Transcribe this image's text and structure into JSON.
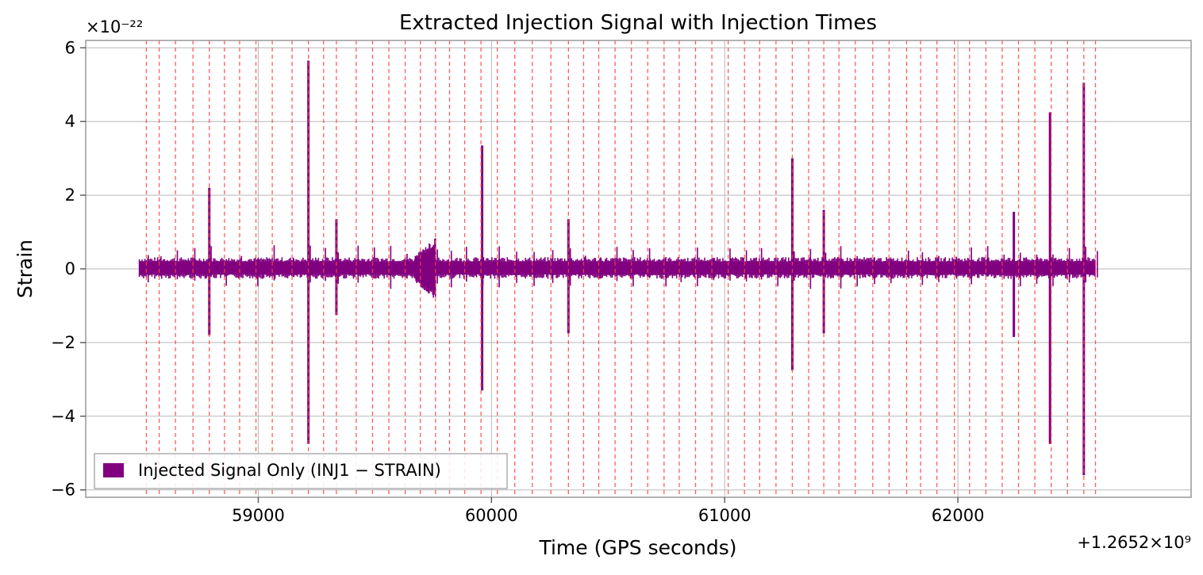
{
  "chart_data": {
    "type": "line",
    "title": "Extracted Injection Signal with Injection Times",
    "xlabel": "Time (GPS seconds)",
    "ylabel": "Strain",
    "x_offset_text": "+1.2652×10⁹",
    "y_scale_text": "×10⁻²²",
    "xlim": [
      58260,
      63000
    ],
    "ylim": [
      -6.2,
      6.2
    ],
    "x_ticks": [
      59000,
      60000,
      61000,
      62000
    ],
    "x_tick_labels": [
      "59000",
      "60000",
      "61000",
      "62000"
    ],
    "y_ticks": [
      -6,
      -4,
      -2,
      0,
      2,
      4,
      6
    ],
    "y_tick_labels": [
      "−6",
      "−4",
      "−2",
      "0",
      "2",
      "4",
      "6"
    ],
    "grid": true,
    "legend": {
      "location": "lower-left",
      "entries": [
        "Injected Signal Only (INJ1 − STRAIN)"
      ]
    },
    "series": [
      {
        "name": "Injected Signal Only (INJ1 − STRAIN)",
        "color": "#800080",
        "x_range": [
          58490,
          62590
        ],
        "baseline_envelope": [
          -0.15,
          0.2
        ],
        "spikes": [
          {
            "x": 58790,
            "max": 2.2,
            "min": -1.8
          },
          {
            "x": 59215,
            "max": 5.65,
            "min": -4.75
          },
          {
            "x": 59335,
            "max": 1.35,
            "min": -1.25
          },
          {
            "x": 59960,
            "max": 3.35,
            "min": -3.3
          },
          {
            "x": 60330,
            "max": 1.35,
            "min": -1.75
          },
          {
            "x": 61290,
            "max": 3.0,
            "min": -2.75
          },
          {
            "x": 61425,
            "max": 1.6,
            "min": -1.75
          },
          {
            "x": 62240,
            "max": 1.55,
            "min": -1.85
          },
          {
            "x": 62395,
            "max": 4.25,
            "min": -4.75
          },
          {
            "x": 62540,
            "max": 5.05,
            "min": -5.6
          }
        ]
      }
    ],
    "injection_times": [
      58520,
      58575,
      58645,
      58720,
      58790,
      58855,
      58920,
      58990,
      59060,
      59145,
      59215,
      59280,
      59335,
      59420,
      59490,
      59560,
      59630,
      59695,
      59760,
      59820,
      59885,
      59955,
      60025,
      60100,
      60175,
      60255,
      60330,
      60395,
      60460,
      60530,
      60600,
      60670,
      60740,
      60805,
      60875,
      60945,
      61015,
      61085,
      61150,
      61220,
      61290,
      61360,
      61425,
      61490,
      61560,
      61635,
      61705,
      61780,
      61840,
      61910,
      61985,
      62050,
      62120,
      62190,
      62260,
      62330,
      62400,
      62470,
      62540,
      62590
    ],
    "injection_line_color": "#ff4040"
  }
}
